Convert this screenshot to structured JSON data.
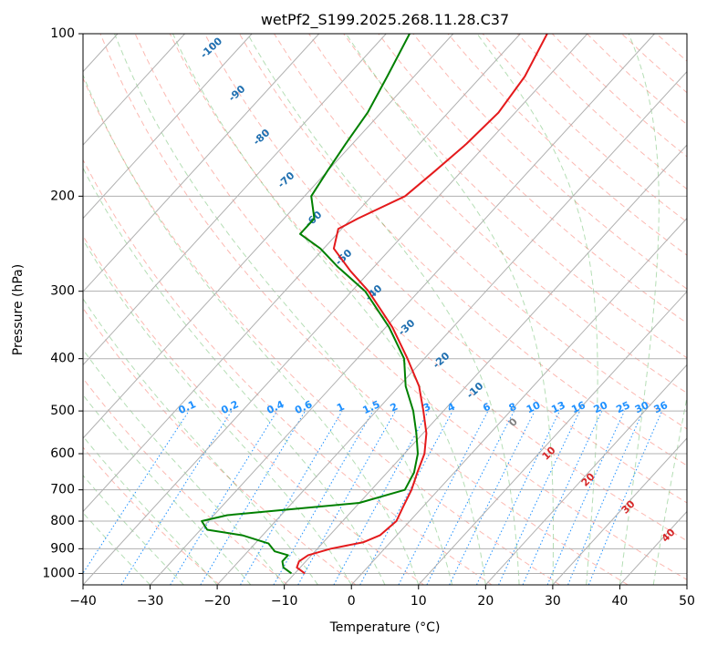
{
  "chart_data": {
    "type": "line",
    "title": "wetPf2_S199.2025.268.11.28.C37",
    "xlabel": "Temperature (°C)",
    "ylabel": "Pressure (hPa)",
    "xlim": [
      -40,
      50
    ],
    "ylim": [
      1050,
      100
    ],
    "y_scale": "log",
    "grid": true,
    "x_ticks": [
      -40,
      -30,
      -20,
      -10,
      0,
      10,
      20,
      30,
      40,
      50
    ],
    "y_ticks": [
      100,
      200,
      300,
      400,
      500,
      600,
      700,
      800,
      900,
      1000
    ],
    "skew_isotherm_labels": [
      "-100",
      "-90",
      "-80",
      "-70",
      "-60",
      "-50",
      "-40",
      "-30",
      "-20",
      "-10"
    ],
    "mixing_ratio_labels": [
      "0.1",
      "0.2",
      "0.4",
      "0.6",
      "1",
      "1.5",
      "2",
      "3",
      "4",
      "6",
      "8",
      "10",
      "13",
      "16",
      "20",
      "25",
      "30",
      "36"
    ],
    "moist_adiabat_labels": [
      "0",
      "10",
      "20",
      "30",
      "40"
    ],
    "colors": {
      "temperature": "#e41a1c",
      "dewpoint": "#008000",
      "isotherm_label": "#1f6fb0",
      "mixing_ratio": "#1e90ff",
      "moist_label": "#d62728",
      "dry_adiabat": "#fa8072",
      "moist_adiabat": "#2ca02c",
      "grid": "#b0b0b0"
    },
    "series": [
      {
        "name": "Temperature",
        "points": [
          [
            1000,
            -8.5
          ],
          [
            975,
            -10.5
          ],
          [
            950,
            -11
          ],
          [
            925,
            -10.5
          ],
          [
            900,
            -8.0
          ],
          [
            875,
            -4.0
          ],
          [
            850,
            -2.5
          ],
          [
            800,
            -2.0
          ],
          [
            750,
            -3.0
          ],
          [
            700,
            -4.0
          ],
          [
            650,
            -5.5
          ],
          [
            600,
            -7.0
          ],
          [
            550,
            -9.5
          ],
          [
            500,
            -13.0
          ],
          [
            450,
            -17.0
          ],
          [
            400,
            -22.5
          ],
          [
            350,
            -29.0
          ],
          [
            300,
            -37.5
          ],
          [
            275,
            -43.0
          ],
          [
            250,
            -48.5
          ],
          [
            230,
            -50.5
          ],
          [
            220,
            -49.0
          ],
          [
            200,
            -45.0
          ],
          [
            180,
            -44.0
          ],
          [
            160,
            -43.0
          ],
          [
            140,
            -42.5
          ],
          [
            120,
            -43.5
          ],
          [
            100,
            -46.0
          ]
        ]
      },
      {
        "name": "Dewpoint",
        "points": [
          [
            1000,
            -10.5
          ],
          [
            975,
            -12.5
          ],
          [
            950,
            -13.5
          ],
          [
            925,
            -13.5
          ],
          [
            910,
            -16.0
          ],
          [
            880,
            -18.0
          ],
          [
            850,
            -23.0
          ],
          [
            830,
            -29.0
          ],
          [
            800,
            -31.0
          ],
          [
            780,
            -28.0
          ],
          [
            760,
            -19.0
          ],
          [
            740,
            -10.0
          ],
          [
            700,
            -5.0
          ],
          [
            650,
            -6.0
          ],
          [
            600,
            -8.0
          ],
          [
            550,
            -11.0
          ],
          [
            500,
            -14.5
          ],
          [
            450,
            -19.0
          ],
          [
            400,
            -23.0
          ],
          [
            350,
            -29.5
          ],
          [
            300,
            -38.0
          ],
          [
            270,
            -45.5
          ],
          [
            250,
            -50.5
          ],
          [
            235,
            -55.5
          ],
          [
            220,
            -55.5
          ],
          [
            200,
            -59.0
          ],
          [
            180,
            -60.0
          ],
          [
            160,
            -61.0
          ],
          [
            140,
            -62.0
          ],
          [
            120,
            -64.0
          ],
          [
            100,
            -66.5
          ]
        ]
      }
    ]
  }
}
